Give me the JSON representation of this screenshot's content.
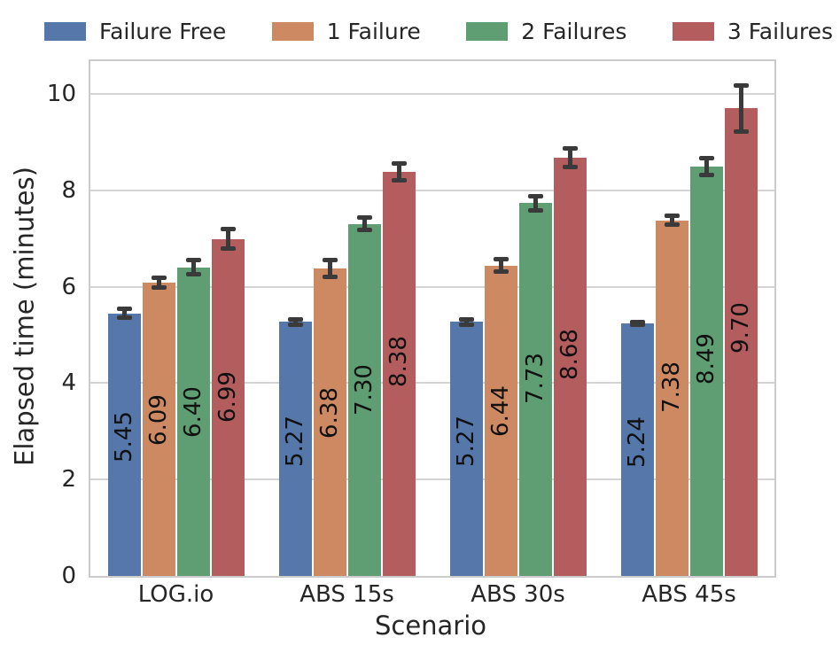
{
  "chart_data": {
    "type": "bar",
    "title": "",
    "xlabel": "Scenario",
    "ylabel": "Elapsed time (minutes)",
    "categories": [
      "LOG.io",
      "ABS 15s",
      "ABS 30s",
      "ABS 45s"
    ],
    "series": [
      {
        "name": "Failure Free",
        "color": "#5577a9",
        "values": [
          5.45,
          5.27,
          5.27,
          5.24
        ],
        "labels": [
          "5.45",
          "5.27",
          "5.27",
          "5.24"
        ],
        "errors": [
          0.09,
          0.05,
          0.06,
          0.03
        ]
      },
      {
        "name": "1 Failure",
        "color": "#cd8a62",
        "values": [
          6.09,
          6.38,
          6.44,
          7.38
        ],
        "labels": [
          "6.09",
          "6.38",
          "6.44",
          "7.38"
        ],
        "errors": [
          0.1,
          0.18,
          0.13,
          0.09
        ]
      },
      {
        "name": "2 Failures",
        "color": "#5f9e72",
        "values": [
          6.4,
          7.3,
          7.73,
          8.49
        ],
        "labels": [
          "6.40",
          "7.30",
          "7.73",
          "8.49"
        ],
        "errors": [
          0.15,
          0.13,
          0.15,
          0.17
        ]
      },
      {
        "name": "3 Failures",
        "color": "#b45d5f",
        "values": [
          6.99,
          8.38,
          8.68,
          9.7
        ],
        "labels": [
          "6.99",
          "8.38",
          "8.68",
          "9.70"
        ],
        "errors": [
          0.2,
          0.17,
          0.19,
          0.48
        ]
      }
    ],
    "yticks": [
      0,
      2,
      4,
      6,
      8,
      10
    ],
    "ylim": [
      0,
      10.68
    ],
    "grid": true,
    "legend_position": "top",
    "error_bar_color": "#3a3a3a",
    "grid_color": "#d4d4d4",
    "spine_color": "#cbcbcb",
    "text_color": "#262626"
  }
}
